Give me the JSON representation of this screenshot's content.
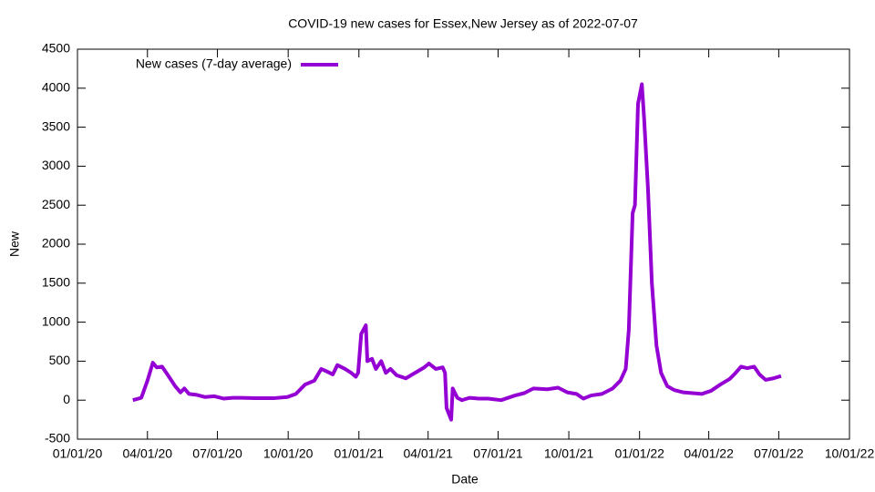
{
  "chart_data": {
    "type": "line",
    "title": "COVID-19 new cases for Essex,New Jersey as of 2022-07-07",
    "x_label": "Date",
    "y_label": "New",
    "legend": "top-left",
    "xlim": [
      "2020-01-01",
      "2022-10-01"
    ],
    "xticks": [
      {
        "value": "2020-01-01",
        "label": "01/01/20"
      },
      {
        "value": "2020-04-01",
        "label": "04/01/20"
      },
      {
        "value": "2020-07-01",
        "label": "07/01/20"
      },
      {
        "value": "2020-10-01",
        "label": "10/01/20"
      },
      {
        "value": "2021-01-01",
        "label": "01/01/21"
      },
      {
        "value": "2021-04-01",
        "label": "04/01/21"
      },
      {
        "value": "2021-07-01",
        "label": "07/01/21"
      },
      {
        "value": "2021-10-01",
        "label": "10/01/21"
      },
      {
        "value": "2022-01-01",
        "label": "01/01/22"
      },
      {
        "value": "2022-04-01",
        "label": "04/01/22"
      },
      {
        "value": "2022-07-01",
        "label": "07/01/22"
      },
      {
        "value": "2022-10-01",
        "label": "10/01/22"
      }
    ],
    "ylim": [
      -500,
      4500
    ],
    "yticks": [
      -500,
      0,
      500,
      1000,
      1500,
      2000,
      2500,
      3000,
      3500,
      4000,
      4500
    ],
    "x": [
      "2020-03-13",
      "2020-03-24",
      "2020-04-01",
      "2020-04-08",
      "2020-04-13",
      "2020-04-20",
      "2020-04-29",
      "2020-05-07",
      "2020-05-14",
      "2020-05-19",
      "2020-05-25",
      "2020-06-03",
      "2020-06-15",
      "2020-06-27",
      "2020-07-09",
      "2020-07-21",
      "2020-08-01",
      "2020-08-19",
      "2020-09-12",
      "2020-09-30",
      "2020-10-11",
      "2020-10-23",
      "2020-11-04",
      "2020-11-13",
      "2020-11-20",
      "2020-11-28",
      "2020-12-04",
      "2020-12-14",
      "2020-12-22",
      "2020-12-28",
      "2020-12-31",
      "2021-01-04",
      "2021-01-10",
      "2021-01-12",
      "2021-01-18",
      "2021-01-23",
      "2021-01-30",
      "2021-02-05",
      "2021-02-11",
      "2021-02-19",
      "2021-03-03",
      "2021-03-15",
      "2021-03-27",
      "2021-04-02",
      "2021-04-11",
      "2021-04-20",
      "2021-04-23",
      "2021-04-25",
      "2021-05-01",
      "2021-05-03",
      "2021-05-09",
      "2021-05-15",
      "2021-05-25",
      "2021-06-06",
      "2021-06-18",
      "2021-07-05",
      "2021-07-23",
      "2021-08-04",
      "2021-08-16",
      "2021-09-03",
      "2021-09-17",
      "2021-09-29",
      "2021-10-11",
      "2021-10-20",
      "2021-10-30",
      "2021-11-13",
      "2021-11-27",
      "2021-12-07",
      "2021-12-14",
      "2021-12-18",
      "2021-12-23",
      "2021-12-26",
      "2021-12-30",
      "2022-01-04",
      "2022-01-07",
      "2022-01-12",
      "2022-01-17",
      "2022-01-23",
      "2022-01-29",
      "2022-02-06",
      "2022-02-15",
      "2022-02-27",
      "2022-03-11",
      "2022-03-23",
      "2022-04-04",
      "2022-04-16",
      "2022-04-28",
      "2022-05-06",
      "2022-05-13",
      "2022-05-21",
      "2022-05-30",
      "2022-06-06",
      "2022-06-14",
      "2022-06-24",
      "2022-07-04"
    ],
    "series": [
      {
        "name": "New cases (7-day average)",
        "color": "#9400d3",
        "values": [
          0,
          30,
          250,
          480,
          420,
          430,
          300,
          180,
          100,
          150,
          80,
          70,
          40,
          50,
          20,
          30,
          30,
          25,
          25,
          40,
          80,
          200,
          250,
          400,
          370,
          330,
          450,
          400,
          350,
          300,
          350,
          850,
          960,
          500,
          530,
          400,
          500,
          350,
          400,
          320,
          280,
          350,
          420,
          470,
          400,
          420,
          350,
          -100,
          -250,
          150,
          30,
          0,
          30,
          20,
          20,
          0,
          60,
          90,
          150,
          140,
          160,
          100,
          80,
          20,
          60,
          80,
          150,
          250,
          400,
          900,
          2400,
          2500,
          3800,
          4050,
          3600,
          2700,
          1500,
          700,
          350,
          180,
          130,
          100,
          90,
          80,
          120,
          200,
          270,
          350,
          430,
          410,
          430,
          330,
          260,
          280,
          310
        ]
      }
    ]
  }
}
